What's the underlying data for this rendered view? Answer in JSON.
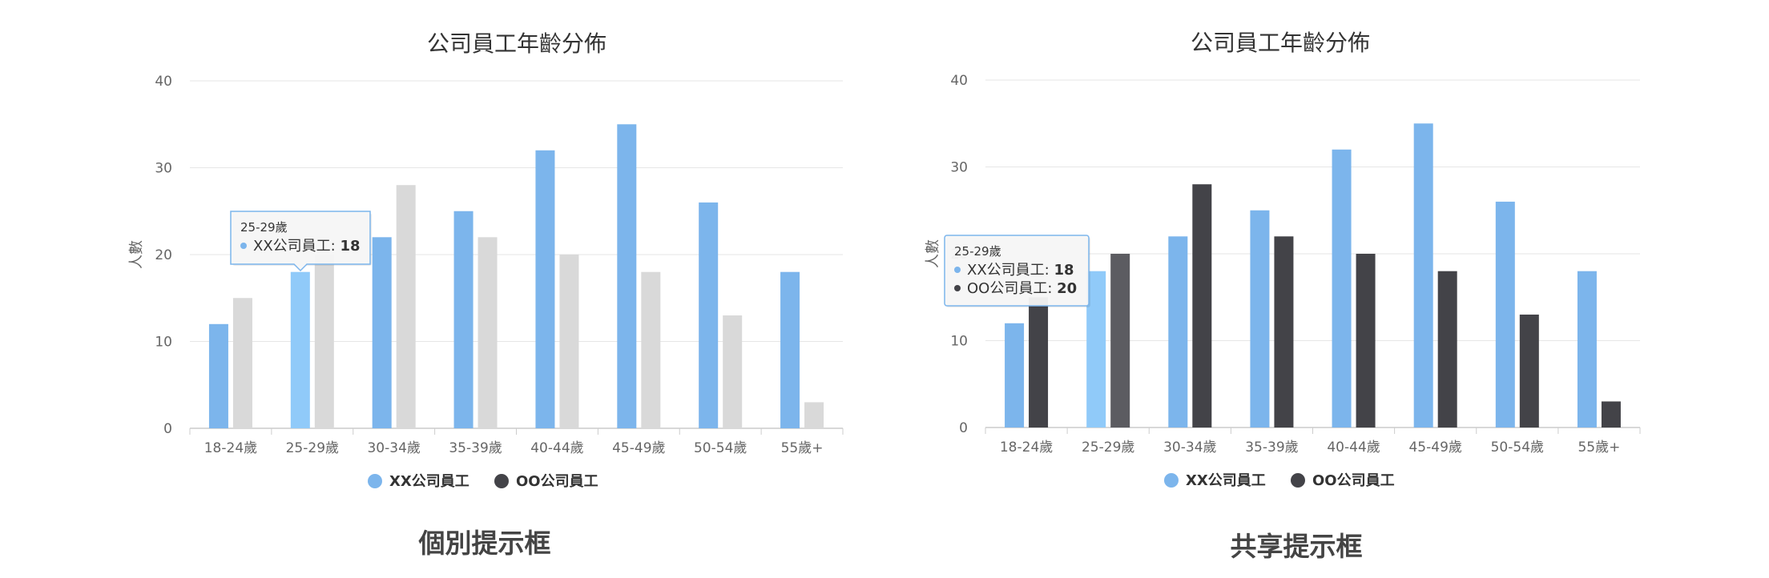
{
  "chart_data": [
    {
      "type": "bar",
      "title": "公司員工年齡分佈",
      "ylabel": "人數",
      "xlabel": "",
      "categories": [
        "18-24歲",
        "25-29歲",
        "30-34歲",
        "35-39歲",
        "40-44歲",
        "45-49歲",
        "50-54歲",
        "55歲+"
      ],
      "series": [
        {
          "name": "XX公司員工",
          "values": [
            12,
            18,
            22,
            25,
            32,
            35,
            26,
            18
          ],
          "color": "#7cb5ec"
        },
        {
          "name": "OO公司員工",
          "values": [
            15,
            20,
            28,
            22,
            20,
            18,
            13,
            3
          ],
          "color": "#d9d9d9",
          "legend_color": "#434348"
        }
      ],
      "ylim": [
        0,
        40
      ],
      "yticks": [
        0,
        10,
        20,
        30,
        40
      ],
      "grid": true,
      "legend": "bottom-center",
      "highlight_color": "#90caf9",
      "tooltip": {
        "mode": "individual",
        "header": "25-29歲",
        "rows": [
          {
            "name": "XX公司員工",
            "value": "18"
          }
        ]
      },
      "caption": "個別提示框"
    },
    {
      "type": "bar",
      "title": "公司員工年齡分佈",
      "ylabel": "人數",
      "xlabel": "",
      "categories": [
        "18-24歲",
        "25-29歲",
        "30-34歲",
        "35-39歲",
        "40-44歲",
        "45-49歲",
        "50-54歲",
        "55歲+"
      ],
      "series": [
        {
          "name": "XX公司員工",
          "values": [
            12,
            18,
            22,
            25,
            32,
            35,
            26,
            18
          ],
          "color": "#7cb5ec"
        },
        {
          "name": "OO公司員工",
          "values": [
            15,
            20,
            28,
            22,
            20,
            18,
            13,
            3
          ],
          "color": "#434348",
          "legend_color": "#434348"
        }
      ],
      "ylim": [
        0,
        40
      ],
      "yticks": [
        0,
        10,
        20,
        30,
        40
      ],
      "grid": true,
      "legend": "bottom-center",
      "highlight_color": "#90caf9",
      "highlight_color_2": "#5c5c61",
      "tooltip": {
        "mode": "shared",
        "header": "25-29歲",
        "rows": [
          {
            "name": "XX公司員工",
            "value": "18"
          },
          {
            "name": "OO公司員工",
            "value": "20"
          }
        ]
      },
      "caption": "共享提示框"
    }
  ]
}
